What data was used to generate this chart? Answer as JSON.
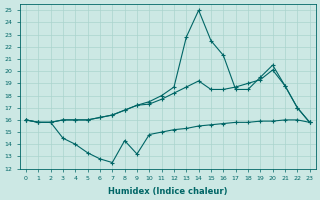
{
  "xlabel": "Humidex (Indice chaleur)",
  "background_color": "#cce8e4",
  "line_color": "#006666",
  "grid_color": "#aad4ce",
  "xlim": [
    -0.5,
    23.5
  ],
  "ylim": [
    12,
    25.5
  ],
  "xticks": [
    0,
    1,
    2,
    3,
    4,
    5,
    6,
    7,
    8,
    9,
    10,
    11,
    12,
    13,
    14,
    15,
    16,
    17,
    18,
    19,
    20,
    21,
    22,
    23
  ],
  "yticks": [
    12,
    13,
    14,
    15,
    16,
    17,
    18,
    19,
    20,
    21,
    22,
    23,
    24,
    25
  ],
  "line1_x": [
    0,
    1,
    2,
    3,
    4,
    5,
    6,
    7,
    8,
    9,
    10,
    11,
    12,
    13,
    14,
    15,
    16,
    17,
    18,
    19,
    20,
    21,
    22,
    23
  ],
  "line1_y": [
    16.0,
    15.8,
    15.8,
    16.0,
    16.0,
    16.0,
    16.2,
    16.4,
    16.8,
    17.2,
    17.3,
    17.7,
    18.2,
    18.7,
    19.2,
    18.5,
    18.5,
    18.7,
    19.0,
    19.3,
    20.1,
    18.8,
    17.0,
    15.8
  ],
  "line2_x": [
    0,
    1,
    2,
    3,
    4,
    5,
    6,
    7,
    8,
    9,
    10,
    11,
    12,
    13,
    14,
    15,
    16,
    17,
    18,
    19,
    20,
    21,
    22,
    23
  ],
  "line2_y": [
    16.0,
    15.8,
    15.8,
    14.5,
    14.0,
    13.3,
    12.8,
    12.5,
    14.3,
    13.2,
    14.8,
    15.0,
    15.2,
    15.3,
    15.5,
    15.6,
    15.7,
    15.8,
    15.8,
    15.9,
    15.9,
    16.0,
    16.0,
    15.8
  ],
  "line3_x": [
    0,
    1,
    2,
    3,
    4,
    5,
    6,
    7,
    8,
    9,
    10,
    11,
    12,
    13,
    14,
    15,
    16,
    17,
    18,
    19,
    20,
    21,
    22,
    23
  ],
  "line3_y": [
    16.0,
    15.8,
    15.8,
    16.0,
    16.0,
    16.0,
    16.2,
    16.4,
    16.8,
    17.2,
    17.5,
    18.0,
    18.7,
    22.8,
    25.0,
    22.5,
    21.3,
    18.5,
    18.5,
    19.5,
    20.5,
    18.8,
    17.0,
    15.8
  ]
}
